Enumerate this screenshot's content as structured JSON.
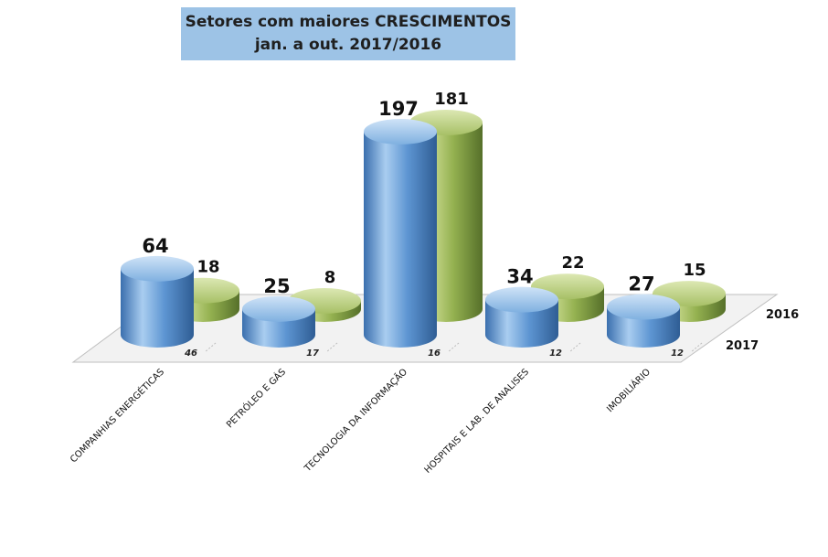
{
  "chart_data": {
    "type": "bar",
    "title": "Setores com maiores CRESCIMENTOS",
    "subtitle": "jan. a out. 2017/2016",
    "categories": [
      "COMPANHIAS ENERGÉTICAS",
      "PETRÓLEO E GÁS",
      "TECNOLOGIA DA INFORMAÇÃO",
      "HOSPITAIS E LAB. DE ANALISES",
      "IMOBILIÁRIO"
    ],
    "series": [
      {
        "name": "2017",
        "values": [
          64,
          25,
          197,
          34,
          27
        ],
        "color": "#5b9bd5"
      },
      {
        "name": "2016",
        "values": [
          18,
          8,
          181,
          22,
          15
        ],
        "color": "#9bbb59"
      }
    ],
    "floor_labels": [
      "46",
      "17",
      "16",
      "12",
      "12"
    ],
    "ylim": [
      0,
      197
    ],
    "grid": false,
    "legend": "right (depth axis labels)"
  }
}
